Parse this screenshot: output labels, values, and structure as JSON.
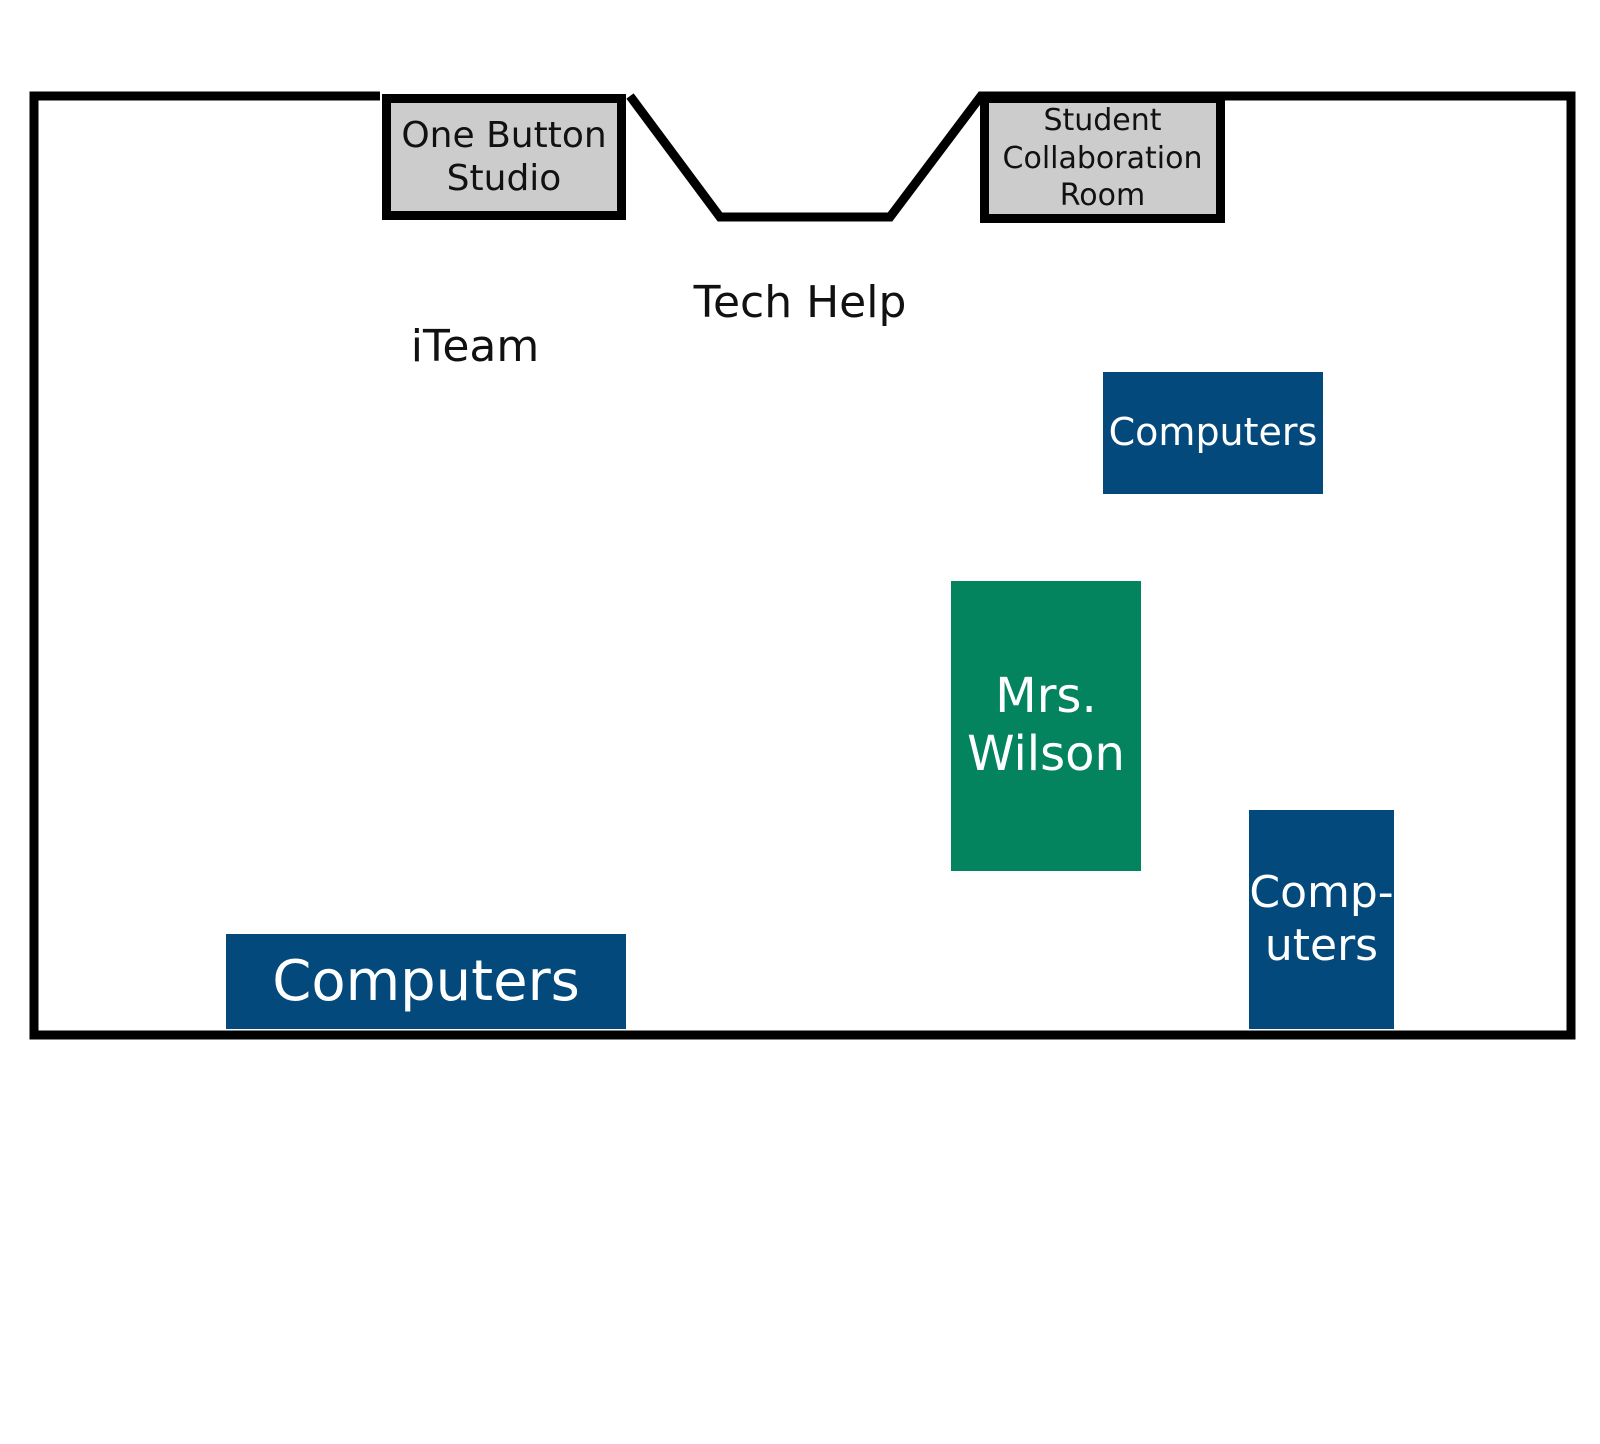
{
  "map": {
    "colors": {
      "computers": "#03497c",
      "staff_desk": "#04845e",
      "room_fill": "#cccccc",
      "walls": "#000000"
    },
    "rooms": {
      "one_button_studio": "One Button\nStudio",
      "student_collaboration_room": "Student\nCollaboration\nRoom"
    },
    "areas": {
      "tech_help": "Tech Help",
      "iteam": "iTeam"
    },
    "desks": {
      "staff": "Mrs.\nWilson"
    },
    "computer_stations": {
      "top_right": "Computers",
      "bottom_left": "Computers",
      "bottom_right": "Comp-\nuters"
    }
  }
}
